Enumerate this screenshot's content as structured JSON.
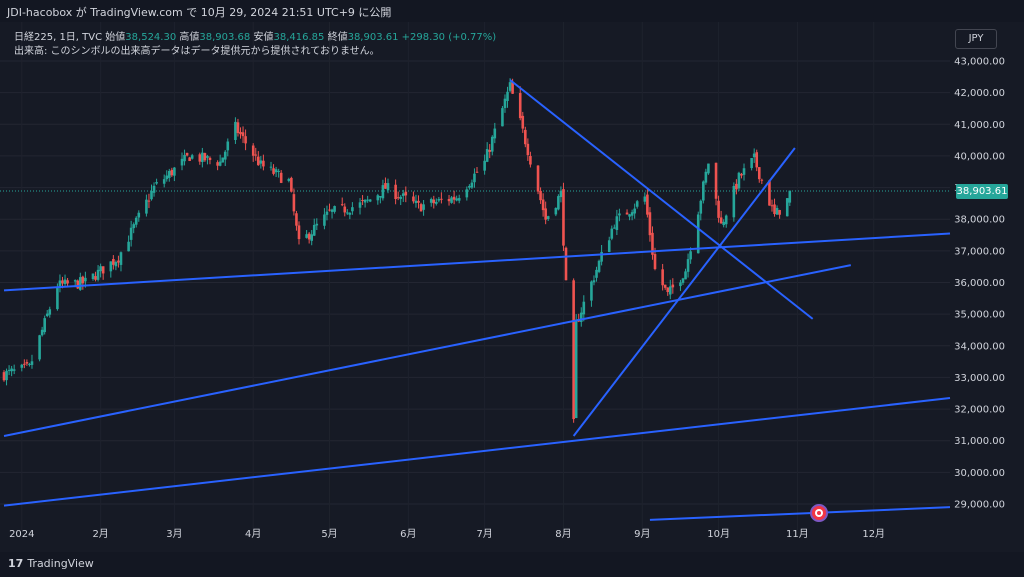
{
  "header": {
    "publish_line": "JDI-hacobox が TradingView.com で 10月 29, 2024 21:51 UTC+9 に公開"
  },
  "legend": {
    "symbol": "日経225, 1日, TVC",
    "open_label": "始値",
    "open_value": "38,524.30",
    "high_label": "高値",
    "high_value": "38,903.68",
    "low_label": "安値",
    "low_value": "38,416.85",
    "close_label": "終値",
    "close_value": "38,903.61",
    "change": "+298.30 (+0.77%)",
    "volume_note": "出来高: このシンボルの出来高データはデータ提供元から提供されておりません。"
  },
  "currency_button": "JPY",
  "last_price_label": "38,903.61",
  "footer": {
    "logo_text": "TradingView"
  },
  "colors": {
    "up": "#26a69a",
    "down": "#ef5350",
    "trendline": "#2962ff",
    "background": "#161a25"
  },
  "chart_data": {
    "type": "candlestick",
    "y_axis": {
      "min": 28500,
      "max": 43000,
      "tick_labels": [
        "43,000.00",
        "42,000.00",
        "41,000.00",
        "40,000.00",
        "39,000.00",
        "38,000.00",
        "37,000.00",
        "36,000.00",
        "35,000.00",
        "34,000.00",
        "33,000.00",
        "32,000.00",
        "31,000.00",
        "30,000.00",
        "29,000.00"
      ],
      "tick_values": [
        43000,
        42000,
        41000,
        40000,
        39000,
        38000,
        37000,
        36000,
        35000,
        34000,
        33000,
        32000,
        31000,
        30000,
        29000
      ]
    },
    "x_axis": {
      "tick_labels": [
        "2024",
        "2月",
        "3月",
        "4月",
        "5月",
        "6月",
        "7月",
        "8月",
        "9月",
        "10月",
        "11月",
        "12月"
      ]
    },
    "anchors": [
      [
        "2023-12-25",
        33100
      ],
      [
        "2024-01-04",
        33300
      ],
      [
        "2024-01-15",
        35900
      ],
      [
        "2024-01-26",
        36000
      ],
      [
        "2024-02-08",
        36800
      ],
      [
        "2024-02-22",
        39000
      ],
      [
        "2024-03-07",
        40000
      ],
      [
        "2024-03-19",
        39800
      ],
      [
        "2024-03-25",
        40900
      ],
      [
        "2024-04-04",
        39700
      ],
      [
        "2024-04-15",
        39200
      ],
      [
        "2024-04-19",
        37200
      ],
      [
        "2024-05-01",
        38200
      ],
      [
        "2024-05-15",
        38500
      ],
      [
        "2024-05-23",
        39000
      ],
      [
        "2024-06-05",
        38400
      ],
      [
        "2024-06-20",
        38700
      ],
      [
        "2024-07-01",
        39800
      ],
      [
        "2024-07-11",
        42200
      ],
      [
        "2024-07-18",
        40200
      ],
      [
        "2024-07-25",
        38000
      ],
      [
        "2024-07-31",
        38800
      ],
      [
        "2024-08-02",
        35900
      ],
      [
        "2024-08-05",
        31500
      ],
      [
        "2024-08-06",
        34700
      ],
      [
        "2024-08-13",
        36200
      ],
      [
        "2024-08-21",
        37900
      ],
      [
        "2024-09-02",
        38700
      ],
      [
        "2024-09-06",
        36400
      ],
      [
        "2024-09-11",
        35600
      ],
      [
        "2024-09-18",
        36400
      ],
      [
        "2024-09-27",
        39800
      ],
      [
        "2024-10-02",
        37800
      ],
      [
        "2024-10-09",
        39300
      ],
      [
        "2024-10-15",
        39900
      ],
      [
        "2024-10-23",
        38100
      ],
      [
        "2024-10-28",
        38600
      ],
      [
        "2024-10-29",
        38903.61
      ]
    ],
    "last_bar": {
      "open": 38524.3,
      "high": 38903.68,
      "low": 38416.85,
      "close": 38903.61
    },
    "trendlines": [
      {
        "p1": [
          "2023-12-25",
          35750
        ],
        "p2": [
          "2024-12-31",
          37550
        ]
      },
      {
        "p1": [
          "2023-12-25",
          31150
        ],
        "p2": [
          "2024-11-22",
          36550
        ]
      },
      {
        "p1": [
          "2023-12-25",
          28950
        ],
        "p2": [
          "2024-12-31",
          32350
        ]
      },
      {
        "p1": [
          "2024-07-11",
          42400
        ],
        "p2": [
          "2024-11-07",
          34850
        ]
      },
      {
        "p1": [
          "2024-08-05",
          31150
        ],
        "p2": [
          "2024-10-31",
          40250
        ]
      },
      {
        "p1": [
          "2024-09-04",
          28500
        ],
        "p2": [
          "2024-12-31",
          28900
        ]
      }
    ]
  }
}
